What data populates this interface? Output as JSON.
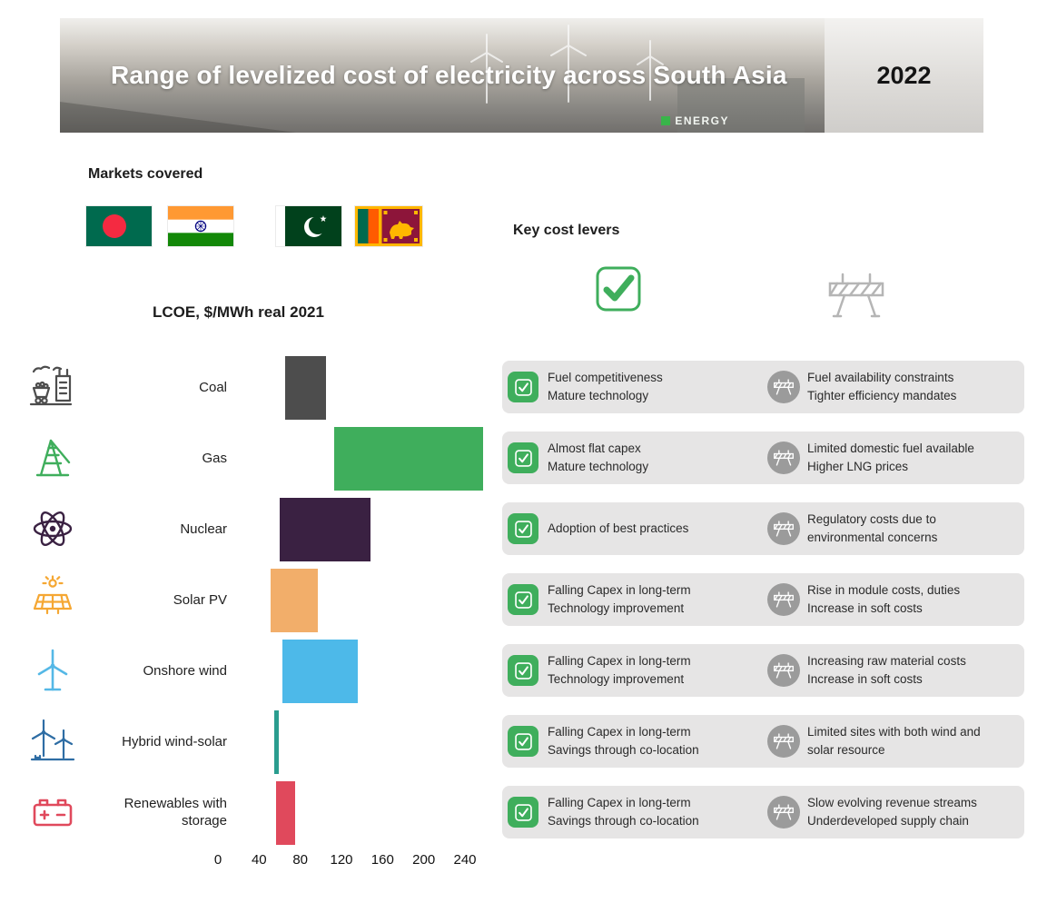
{
  "header": {
    "title": "Range of levelized cost of electricity across South Asia",
    "year": "2022",
    "photo_text": "ENERGY"
  },
  "markets": {
    "heading": "Markets covered",
    "flags": [
      {
        "name": "Bangladesh"
      },
      {
        "name": "India"
      },
      {
        "name": "Pakistan"
      },
      {
        "name": "Sri Lanka"
      }
    ]
  },
  "key_levers": {
    "heading": "Key  cost levers",
    "pros_symbol": "checkbox",
    "cons_symbol": "barrier",
    "rows": [
      {
        "pros": "Fuel competitiveness\nMature technology",
        "cons": "Fuel availability constraints\nTighter efficiency mandates"
      },
      {
        "pros": "Almost flat capex\nMature technology",
        "cons": "Limited domestic fuel available\nHigher LNG prices"
      },
      {
        "pros": "Adoption of best practices",
        "cons": "Regulatory costs due to\nenvironmental concerns"
      },
      {
        "pros": "Falling Capex in long-term\nTechnology improvement",
        "cons": "Rise in module costs, duties\nIncrease in soft costs"
      },
      {
        "pros": "Falling Capex in long-term\nTechnology improvement",
        "cons": "Increasing raw material costs\nIncrease in soft costs"
      },
      {
        "pros": "Falling Capex in long-term\nSavings through co-location",
        "cons": "Limited sites with both wind and\nsolar resource"
      },
      {
        "pros": "Falling Capex in long-term\nSavings through co-location",
        "cons": "Slow evolving revenue streams\nUnderdeveloped supply chain"
      }
    ]
  },
  "chart_data": {
    "type": "bar",
    "subtype": "horizontal-range",
    "title": "LCOE, $/MWh real 2021",
    "categories": [
      "Coal",
      "Gas",
      "Nuclear",
      "Solar PV",
      "Onshore wind",
      "Hybrid wind-solar",
      "Renewables with storage"
    ],
    "icons": [
      "coal-icon",
      "gas-icon",
      "nuclear-icon",
      "solar-pv-icon",
      "onshore-wind-icon",
      "hybrid-wind-solar-icon",
      "battery-storage-icon"
    ],
    "ranges": [
      [
        65,
        105
      ],
      [
        113,
        258
      ],
      [
        60,
        148
      ],
      [
        51,
        97
      ],
      [
        63,
        136
      ],
      [
        55,
        59
      ],
      [
        56,
        75
      ]
    ],
    "colors": [
      "#4d4d4d",
      "#3fae5c",
      "#3a2142",
      "#f2ae6a",
      "#4db9e9",
      "#2a9d8f",
      "#e0495c"
    ],
    "xticks": [
      0,
      40,
      80,
      120,
      160,
      200,
      240
    ],
    "xlim": [
      0,
      260
    ],
    "xlabel": "",
    "ylabel": ""
  }
}
